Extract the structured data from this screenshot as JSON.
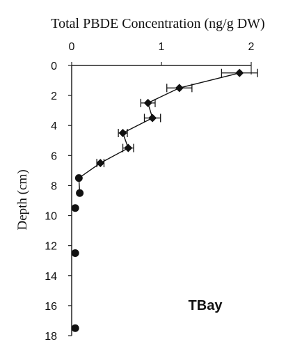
{
  "chart_data": {
    "type": "scatter",
    "title": "Total PBDE Concentration (ng/g DW)",
    "xlabel": "",
    "ylabel": "Depth (cm)",
    "xlim": [
      0,
      2
    ],
    "ylim": [
      0,
      18
    ],
    "y_inverted": true,
    "x_axis_position": "top",
    "x_ticks": [
      "0",
      "1",
      "2"
    ],
    "y_ticks": [
      "0",
      "2",
      "4",
      "6",
      "8",
      "10",
      "12",
      "14",
      "16",
      "18"
    ],
    "annotation": "TBay",
    "grid": false,
    "series": [
      {
        "marker": "diamond",
        "line": true,
        "points": [
          {
            "x": 1.87,
            "y": 0.5,
            "xerr": 0.2
          },
          {
            "x": 1.2,
            "y": 1.5,
            "xerr": 0.14
          },
          {
            "x": 0.85,
            "y": 2.5,
            "xerr": 0.08
          },
          {
            "x": 0.9,
            "y": 3.5,
            "xerr": 0.09
          },
          {
            "x": 0.57,
            "y": 4.5,
            "xerr": 0.05
          },
          {
            "x": 0.63,
            "y": 5.5,
            "xerr": 0.06
          },
          {
            "x": 0.32,
            "y": 6.5,
            "xerr": 0.04
          },
          {
            "x": 0.08,
            "y": 7.5,
            "xerr": 0
          },
          {
            "x": 0.09,
            "y": 8.5,
            "xerr": 0
          },
          {
            "x": 0.04,
            "y": 9.5,
            "xerr": 0
          },
          {
            "x": 0.04,
            "y": 12.5,
            "xerr": 0
          },
          {
            "x": 0.04,
            "y": 17.5,
            "xerr": 0
          }
        ]
      }
    ]
  }
}
